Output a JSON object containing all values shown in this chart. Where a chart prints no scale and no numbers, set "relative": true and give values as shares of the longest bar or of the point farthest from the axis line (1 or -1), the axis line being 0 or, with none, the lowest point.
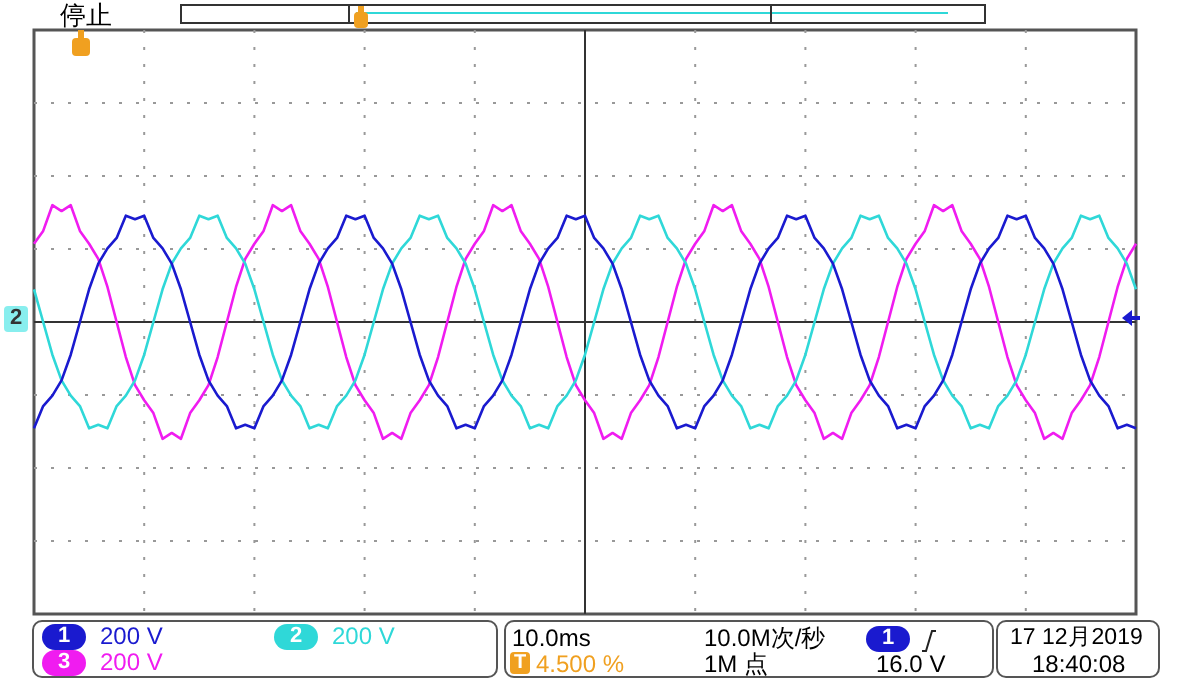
{
  "chart_data": {
    "type": "line",
    "relative": true,
    "grid": true,
    "legend": "bottom",
    "tick_labels": false,
    "categories": [
      null,
      null,
      null,
      null,
      null,
      null,
      null,
      null,
      null,
      null,
      null,
      null,
      null,
      null,
      null,
      null,
      null,
      null,
      null,
      null,
      null,
      null,
      null,
      null,
      null,
      null,
      null,
      null,
      null,
      null,
      null,
      null,
      null,
      null,
      null,
      null,
      null,
      null,
      null,
      null,
      null,
      null,
      null,
      null,
      null,
      null,
      null,
      null,
      null,
      null,
      null,
      null,
      null,
      null,
      null,
      null,
      null,
      null,
      null,
      null,
      null,
      null,
      null,
      null,
      null,
      null,
      null,
      null,
      null,
      null,
      null,
      null,
      null,
      null,
      null,
      null,
      null,
      null,
      null,
      null,
      null,
      null,
      null,
      null,
      null,
      null,
      null,
      null,
      null,
      null,
      null,
      null,
      null,
      null,
      null,
      null,
      null,
      null,
      null,
      null,
      null,
      null,
      null,
      null,
      null,
      null,
      null,
      null,
      null,
      null,
      null,
      null,
      null,
      null,
      null,
      null,
      null,
      null,
      null,
      null,
      null
    ],
    "series": [
      {
        "name": "1",
        "color": "#1a1acf",
        "values": [
          -0.91,
          -0.72,
          -0.63,
          -0.5,
          -0.28,
          0,
          0.28,
          0.5,
          0.63,
          0.72,
          0.91,
          0.88,
          0.91,
          0.72,
          0.63,
          0.5,
          0.28,
          0,
          -0.28,
          -0.5,
          -0.63,
          -0.72,
          -0.91,
          -0.88,
          -0.91,
          -0.72,
          -0.63,
          -0.5,
          -0.28,
          0,
          0.28,
          0.5,
          0.63,
          0.72,
          0.91,
          0.88,
          0.91,
          0.72,
          0.63,
          0.5,
          0.28,
          0,
          -0.28,
          -0.5,
          -0.63,
          -0.72,
          -0.91,
          -0.88,
          -0.91,
          -0.72,
          -0.63,
          -0.5,
          -0.28,
          0,
          0.28,
          0.5,
          0.63,
          0.72,
          0.91,
          0.88,
          0.91,
          0.72,
          0.63,
          0.5,
          0.28,
          0,
          -0.28,
          -0.5,
          -0.63,
          -0.72,
          -0.91,
          -0.88,
          -0.91,
          -0.72,
          -0.63,
          -0.5,
          -0.28,
          0,
          0.28,
          0.5,
          0.63,
          0.72,
          0.91,
          0.88,
          0.91,
          0.72,
          0.63,
          0.5,
          0.28,
          0,
          -0.28,
          -0.5,
          -0.63,
          -0.72,
          -0.91,
          -0.88,
          -0.91,
          -0.72,
          -0.63,
          -0.5,
          -0.28,
          0,
          0.28,
          0.5,
          0.63,
          0.72,
          0.91,
          0.88,
          0.91,
          0.72,
          0.63,
          0.5,
          0.28,
          0,
          -0.28,
          -0.5,
          -0.63,
          -0.72,
          -0.91,
          -0.88,
          -0.91
        ]
      },
      {
        "name": "2",
        "color": "#2fd8d8",
        "values": [
          0.28,
          0,
          -0.28,
          -0.5,
          -0.63,
          -0.72,
          -0.91,
          -0.88,
          -0.91,
          -0.72,
          -0.63,
          -0.5,
          -0.28,
          0,
          0.28,
          0.5,
          0.63,
          0.72,
          0.91,
          0.88,
          0.91,
          0.72,
          0.63,
          0.5,
          0.28,
          0,
          -0.28,
          -0.5,
          -0.63,
          -0.72,
          -0.91,
          -0.88,
          -0.91,
          -0.72,
          -0.63,
          -0.5,
          -0.28,
          0,
          0.28,
          0.5,
          0.63,
          0.72,
          0.91,
          0.88,
          0.91,
          0.72,
          0.63,
          0.5,
          0.28,
          0,
          -0.28,
          -0.5,
          -0.63,
          -0.72,
          -0.91,
          -0.88,
          -0.91,
          -0.72,
          -0.63,
          -0.5,
          -0.28,
          0,
          0.28,
          0.5,
          0.63,
          0.72,
          0.91,
          0.88,
          0.91,
          0.72,
          0.63,
          0.5,
          0.28,
          0,
          -0.28,
          -0.5,
          -0.63,
          -0.72,
          -0.91,
          -0.88,
          -0.91,
          -0.72,
          -0.63,
          -0.5,
          -0.28,
          0,
          0.28,
          0.5,
          0.63,
          0.72,
          0.91,
          0.88,
          0.91,
          0.72,
          0.63,
          0.5,
          0.28,
          0,
          -0.28,
          -0.5,
          -0.63,
          -0.72,
          -0.91,
          -0.88,
          -0.91,
          -0.72,
          -0.63,
          -0.5,
          -0.28,
          0,
          0.28,
          0.5,
          0.63,
          0.72,
          0.91,
          0.88,
          0.91,
          0.72,
          0.63,
          0.5,
          0.28
        ]
      },
      {
        "name": "3",
        "color": "#f01cf0",
        "values": [
          0.67,
          0.78,
          1,
          0.95,
          1,
          0.78,
          0.67,
          0.54,
          0.3,
          0,
          -0.3,
          -0.54,
          -0.67,
          -0.78,
          -1,
          -0.95,
          -1,
          -0.78,
          -0.67,
          -0.54,
          -0.3,
          0,
          0.3,
          0.54,
          0.67,
          0.78,
          1,
          0.95,
          1,
          0.78,
          0.67,
          0.54,
          0.3,
          0,
          -0.3,
          -0.54,
          -0.67,
          -0.78,
          -1,
          -0.95,
          -1,
          -0.78,
          -0.67,
          -0.54,
          -0.3,
          0,
          0.3,
          0.54,
          0.67,
          0.78,
          1,
          0.95,
          1,
          0.78,
          0.67,
          0.54,
          0.3,
          0,
          -0.3,
          -0.54,
          -0.67,
          -0.78,
          -1,
          -0.95,
          -1,
          -0.78,
          -0.67,
          -0.54,
          -0.3,
          0,
          0.3,
          0.54,
          0.67,
          0.78,
          1,
          0.95,
          1,
          0.78,
          0.67,
          0.54,
          0.3,
          0,
          -0.3,
          -0.54,
          -0.67,
          -0.78,
          -1,
          -0.95,
          -1,
          -0.78,
          -0.67,
          -0.54,
          -0.3,
          0,
          0.3,
          0.54,
          0.67,
          0.78,
          1,
          0.95,
          1,
          0.78,
          0.67,
          0.54,
          0.3,
          0,
          -0.3,
          -0.54,
          -0.67,
          -0.78,
          -1,
          -0.95,
          -1,
          -0.78,
          -0.67,
          -0.54,
          -0.3,
          0,
          0.3,
          0.54,
          0.67
        ]
      }
    ],
    "annotations": [
      "停止",
      "2",
      "200 V",
      "200 V",
      "200 V",
      "10.0ms",
      "T",
      "4.500 %",
      "10.0M次/秒",
      "1M 点",
      "1",
      "16.0 V",
      "17 12月2019",
      "18:40:08"
    ]
  }
}
